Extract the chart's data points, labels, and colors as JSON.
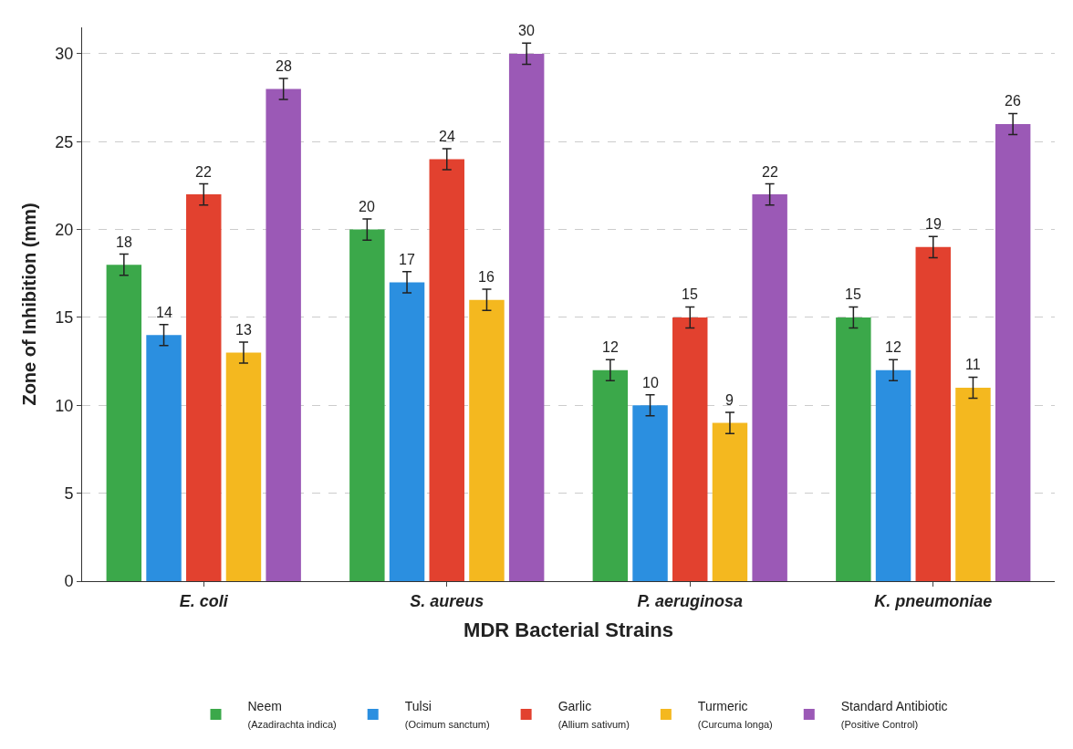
{
  "chart_data": {
    "type": "bar",
    "xlabel": "MDR Bacterial Strains",
    "ylabel": "Zone of Inhibition (mm)",
    "categories": [
      "E. coli",
      "S. aureus",
      "P. aeruginosa",
      "K. pneumoniae"
    ],
    "series": [
      {
        "name": "Neem\n(Azadirachta indica)",
        "color": "#3ba84a",
        "values": [
          18,
          20,
          12,
          15
        ],
        "errors": [
          0.6,
          0.6,
          0.6,
          0.6
        ]
      },
      {
        "name": "Tulsi\n(Ocimum sanctum)",
        "color": "#2b8fe0",
        "values": [
          14,
          17,
          10,
          12
        ],
        "errors": [
          0.6,
          0.6,
          0.6,
          0.6
        ]
      },
      {
        "name": "Garlic\n(Allium sativum)",
        "color": "#e2412f",
        "values": [
          22,
          24,
          15,
          19
        ],
        "errors": [
          0.6,
          0.6,
          0.6,
          0.6
        ]
      },
      {
        "name": "Turmeric\n(Curcuma longa)",
        "color": "#f4b81f",
        "values": [
          13,
          16,
          9,
          11
        ],
        "errors": [
          0.6,
          0.6,
          0.6,
          0.6
        ]
      },
      {
        "name": "Standard Antibiotic\n(Positive Control)",
        "color": "#9b59b6",
        "values": [
          28,
          30,
          22,
          26
        ],
        "errors": [
          0.6,
          0.6,
          0.6,
          0.6
        ]
      }
    ],
    "ylim": [
      0,
      31.5
    ],
    "yticks": [
      0,
      5,
      10,
      15,
      20,
      25,
      30
    ],
    "grid": "y",
    "legend": "bottom",
    "data_labels": true
  }
}
